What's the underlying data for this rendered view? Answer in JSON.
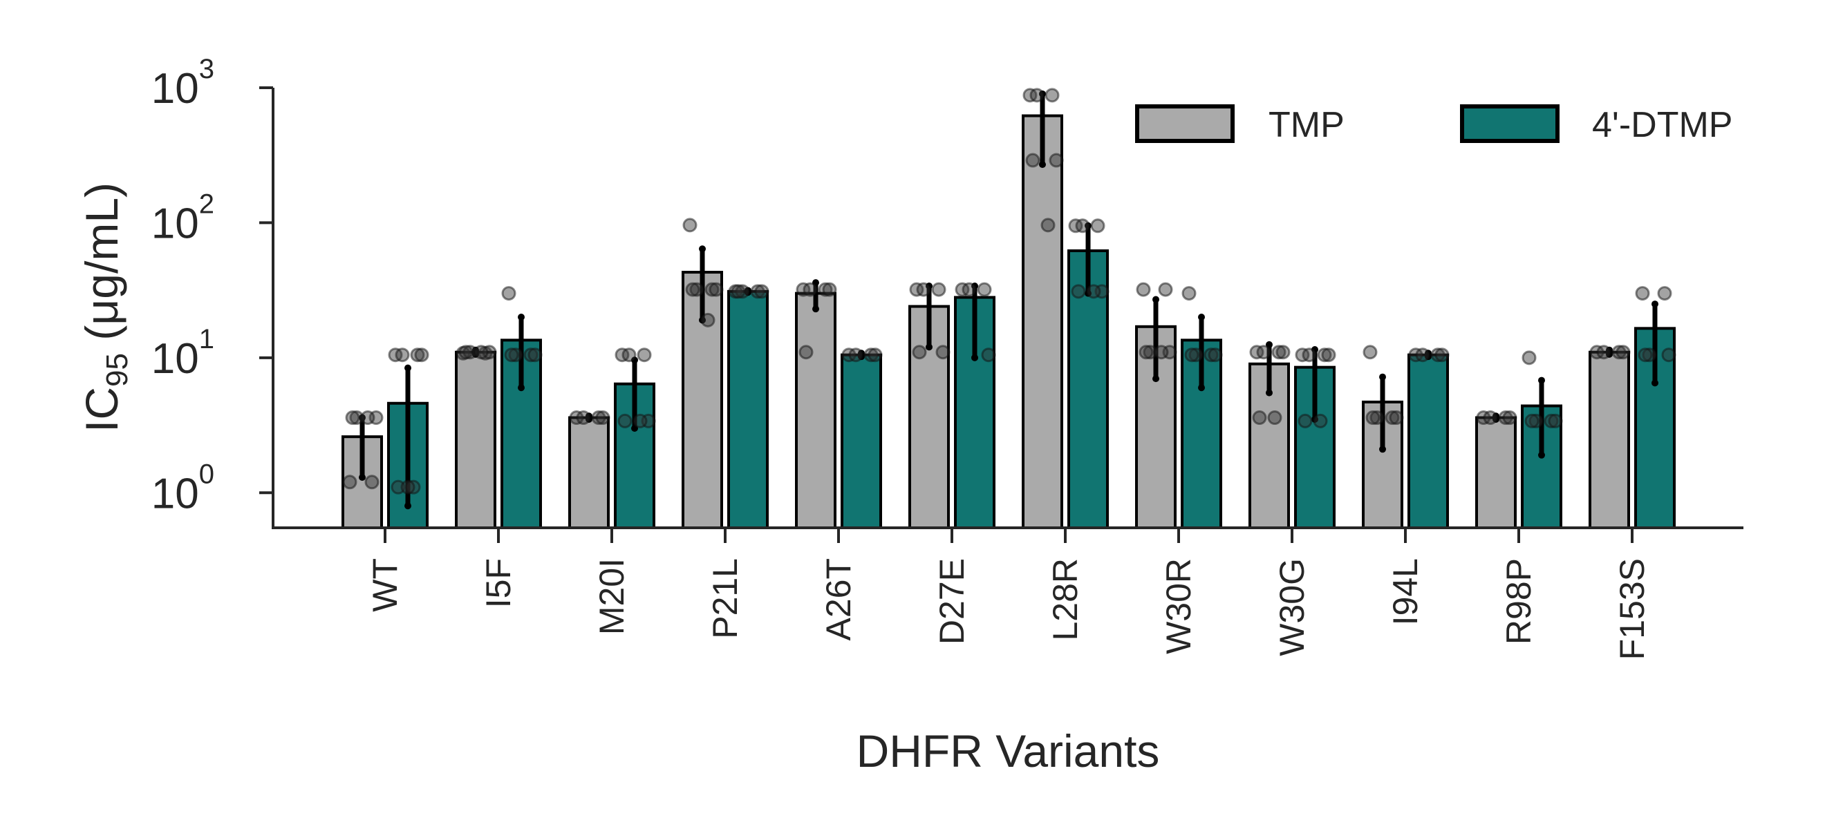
{
  "chart_data": {
    "type": "bar",
    "xlabel": "DHFR Variants",
    "ylabel": {
      "main": "IC",
      "sub": "95",
      "unit": " (μg/mL)"
    },
    "yscale": "log",
    "ylim": [
      0.55,
      1000
    ],
    "yticks": [
      {
        "base": "10",
        "exp": "0",
        "value": 1
      },
      {
        "base": "10",
        "exp": "1",
        "value": 10
      },
      {
        "base": "10",
        "exp": "2",
        "value": 100
      },
      {
        "base": "10",
        "exp": "3",
        "value": 1000
      }
    ],
    "grid": false,
    "legend": "top-right",
    "categories": [
      "WT",
      "I5F",
      "M20I",
      "P21L",
      "A26T",
      "D27E",
      "L28R",
      "W30R",
      "W30G",
      "I94L",
      "R98P",
      "F153S"
    ],
    "series": [
      {
        "name": "TMP",
        "color": "#aaaaaa",
        "values": [
          2.6,
          11,
          3.6,
          43,
          30,
          24,
          620,
          17,
          9,
          4.7,
          3.6,
          11
        ],
        "err_low": [
          1.3,
          10.6,
          3.5,
          19,
          23,
          12,
          270,
          7,
          5.5,
          2.1,
          3.5,
          10.6
        ],
        "err_high": [
          3.6,
          11.4,
          3.7,
          64,
          36,
          34,
          900,
          27,
          12.5,
          7.2,
          3.7,
          11.4
        ],
        "points": [
          [
            1.2,
            1.2,
            3.6,
            3.6,
            3.6,
            3.6
          ],
          [
            10.8,
            10.8,
            11,
            11,
            11,
            11
          ],
          [
            3.6,
            3.6,
            3.6,
            3.6
          ],
          [
            96,
            32,
            32,
            32,
            32,
            19
          ],
          [
            32,
            32,
            32,
            32,
            11
          ],
          [
            32,
            32,
            32,
            11,
            11
          ],
          [
            880,
            880,
            880,
            290,
            290,
            96
          ],
          [
            32,
            32,
            11,
            11,
            11,
            11
          ],
          [
            11,
            11,
            11,
            11,
            3.6,
            3.6
          ],
          [
            11,
            3.6,
            3.6,
            3.6,
            3.6
          ],
          [
            3.6,
            3.6,
            3.6,
            3.6
          ],
          [
            11,
            11,
            11,
            11
          ]
        ]
      },
      {
        "name": "4'-DTMP",
        "color": "#117571",
        "values": [
          4.6,
          13.5,
          6.4,
          31,
          10.5,
          28,
          62,
          13.5,
          8.5,
          10.5,
          4.4,
          16.5
        ],
        "err_low": [
          0.8,
          6,
          3,
          30.5,
          10.2,
          10,
          30,
          6,
          3.5,
          10.2,
          1.9,
          6.5
        ],
        "err_high": [
          8.4,
          20,
          9.6,
          31.5,
          10.8,
          34,
          95,
          20,
          11.5,
          10.8,
          6.8,
          25
        ],
        "points": [
          [
            10.5,
            10.5,
            10.5,
            10.5,
            1.1,
            1.1,
            1.1
          ],
          [
            30,
            10.5,
            10.5,
            10.5,
            10.5
          ],
          [
            10.5,
            10.5,
            10.5,
            3.4,
            3.4,
            3.4
          ],
          [
            31,
            31,
            31,
            31,
            31
          ],
          [
            10.5,
            10.5,
            10.5,
            10.5
          ],
          [
            32,
            32,
            32,
            10.5
          ],
          [
            95,
            95,
            95,
            31,
            31,
            31
          ],
          [
            30,
            10.5,
            10.5,
            10.5,
            10.5
          ],
          [
            10.5,
            10.5,
            10.5,
            10.5,
            3.4,
            3.4
          ],
          [
            10.5,
            10.5,
            10.5,
            10.5
          ],
          [
            10,
            3.4,
            3.4,
            3.4,
            3.4
          ],
          [
            30,
            30,
            10.5,
            10.5,
            10.5
          ]
        ]
      }
    ]
  }
}
